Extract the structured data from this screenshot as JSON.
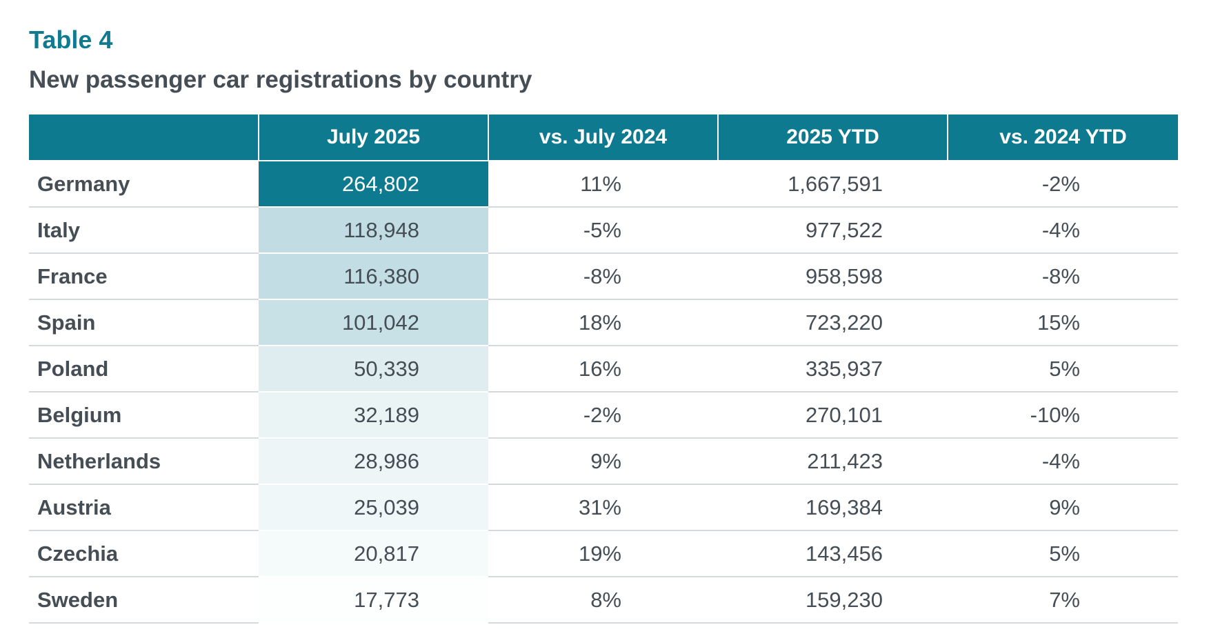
{
  "header": {
    "label": "Table 4",
    "title": "New passenger car registrations by country"
  },
  "table": {
    "columns": [
      "",
      "July 2025",
      "vs. July 2024",
      "2025 YTD",
      "vs. 2024 YTD"
    ],
    "rows": [
      {
        "country": "Germany",
        "july_2025": "264,802",
        "vs_july_2024": "11%",
        "ytd_2025": "1,667,591",
        "vs_ytd_2024": "-2%"
      },
      {
        "country": "Italy",
        "july_2025": "118,948",
        "vs_july_2024": "-5%",
        "ytd_2025": "977,522",
        "vs_ytd_2024": "-4%"
      },
      {
        "country": "France",
        "july_2025": "116,380",
        "vs_july_2024": "-8%",
        "ytd_2025": "958,598",
        "vs_ytd_2024": "-8%"
      },
      {
        "country": "Spain",
        "july_2025": "101,042",
        "vs_july_2024": "18%",
        "ytd_2025": "723,220",
        "vs_ytd_2024": "15%"
      },
      {
        "country": "Poland",
        "july_2025": "50,339",
        "vs_july_2024": "16%",
        "ytd_2025": "335,937",
        "vs_ytd_2024": "5%"
      },
      {
        "country": "Belgium",
        "july_2025": "32,189",
        "vs_july_2024": "-2%",
        "ytd_2025": "270,101",
        "vs_ytd_2024": "-10%"
      },
      {
        "country": "Netherlands",
        "july_2025": "28,986",
        "vs_july_2024": "9%",
        "ytd_2025": "211,423",
        "vs_ytd_2024": "-4%"
      },
      {
        "country": "Austria",
        "july_2025": "25,039",
        "vs_july_2024": "31%",
        "ytd_2025": "169,384",
        "vs_ytd_2024": "9%"
      },
      {
        "country": "Czechia",
        "july_2025": "20,817",
        "vs_july_2024": "19%",
        "ytd_2025": "143,456",
        "vs_ytd_2024": "5%"
      },
      {
        "country": "Sweden",
        "july_2025": "17,773",
        "vs_july_2024": "8%",
        "ytd_2025": "159,230",
        "vs_ytd_2024": "7%"
      }
    ]
  },
  "colors": {
    "accent": "#107a91",
    "header_bg": "#0e7a90",
    "text": "#454d55",
    "rule": "#d6d9dc",
    "heat_max": "#0e7a90",
    "heat_min": "#ffffff"
  }
}
